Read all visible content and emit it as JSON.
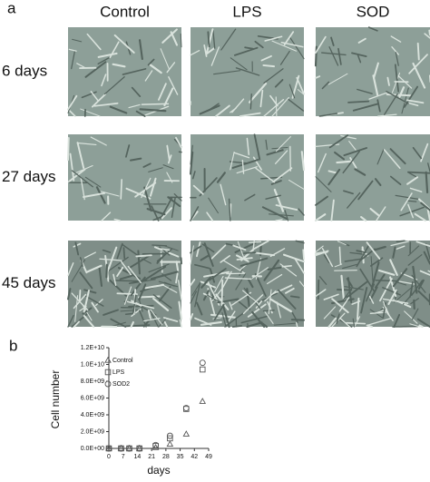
{
  "panel_a": {
    "label": "a",
    "columns": [
      "Control",
      "LPS",
      "SOD"
    ],
    "rows": [
      "6 days",
      "27 days",
      "45 days"
    ]
  },
  "panel_b": {
    "label": "b"
  },
  "chart_data": {
    "type": "scatter",
    "x_label": "days",
    "y_label": "Cell number",
    "x": [
      0,
      6,
      10,
      15,
      23,
      30,
      38,
      46
    ],
    "xlim": [
      0,
      49
    ],
    "xticks": [
      0,
      7,
      14,
      21,
      28,
      35,
      42,
      49
    ],
    "ylim": [
      0,
      12000000000
    ],
    "yticks": [
      {
        "value": 0,
        "label": "0.0E+00"
      },
      {
        "value": 2000000000,
        "label": "2.0E+09"
      },
      {
        "value": 4000000000,
        "label": "4.0E+09"
      },
      {
        "value": 6000000000,
        "label": "6.0E+09"
      },
      {
        "value": 8000000000,
        "label": "8.0E+09"
      },
      {
        "value": 10000000000,
        "label": "1.0E+10"
      },
      {
        "value": 12000000000,
        "label": "1.2E+10"
      }
    ],
    "grid": false,
    "series": [
      {
        "name": "Control",
        "marker": "triangle",
        "color": "#555555",
        "values": [
          0,
          0,
          0,
          0,
          100000000,
          500000000,
          1700000000,
          5600000000
        ]
      },
      {
        "name": "LPS",
        "marker": "square",
        "color": "#555555",
        "values": [
          0,
          0,
          0,
          0,
          300000000,
          1200000000,
          4700000000,
          9400000000
        ]
      },
      {
        "name": "SOD2",
        "marker": "circle",
        "color": "#555555",
        "values": [
          0,
          0,
          0,
          0,
          400000000,
          1500000000,
          4800000000,
          10200000000
        ]
      }
    ]
  }
}
